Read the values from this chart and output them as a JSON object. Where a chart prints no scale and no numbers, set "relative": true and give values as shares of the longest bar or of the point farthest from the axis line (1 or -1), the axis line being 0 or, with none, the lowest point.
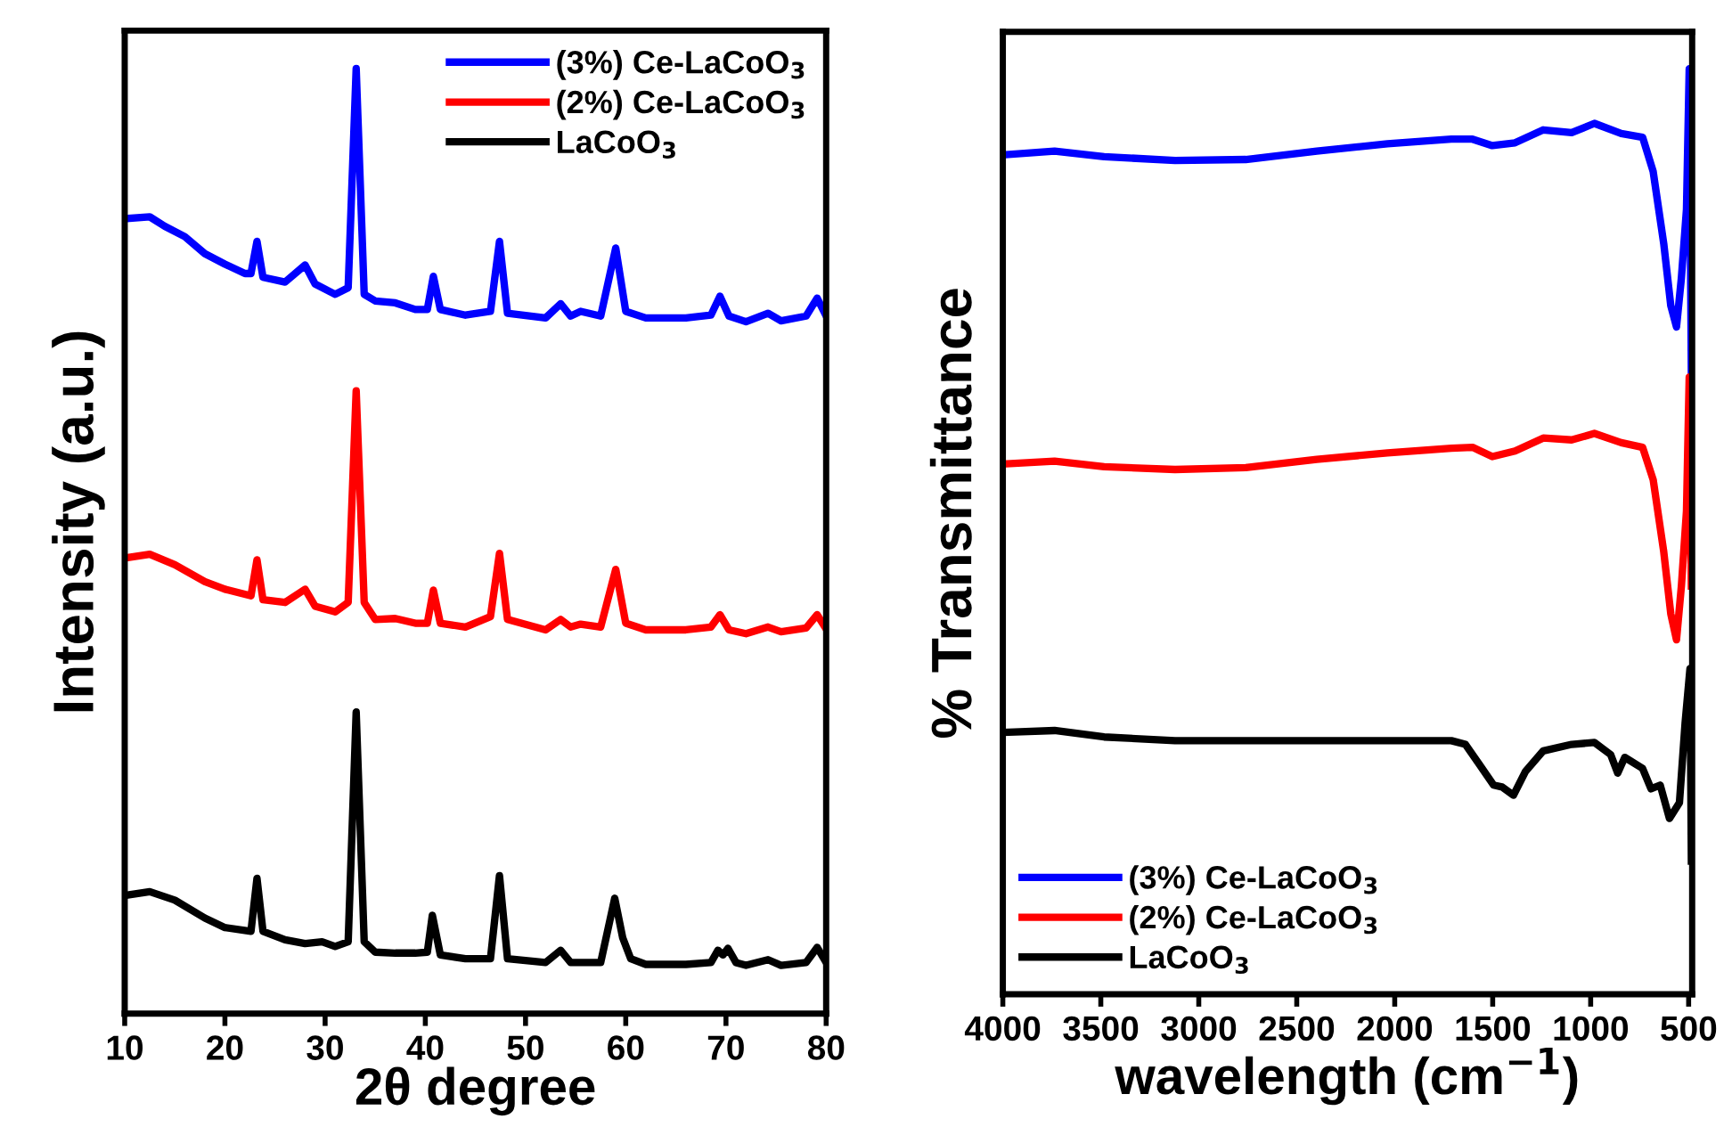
{
  "chart_data": [
    {
      "type": "line",
      "xlabel": "2θ degree",
      "ylabel": "Intensity (a.u.)",
      "relative": true,
      "xlim": [
        10,
        80
      ],
      "xticks": [
        10,
        20,
        30,
        40,
        50,
        60,
        70,
        80
      ],
      "tick_labels": "x",
      "legend": "top right",
      "grid": false,
      "marker": "none",
      "line_style": "solid",
      "series": [
        {
          "name": "(3%) Ce-LaCoO$_{3}$",
          "color": "#0000ff",
          "x": [
            10,
            12.5,
            14,
            16,
            18,
            20,
            22,
            22.6,
            23.2,
            23.8,
            26,
            28,
            29,
            31,
            32.3,
            33.1,
            33.9,
            35,
            37,
            39,
            40.2,
            40.8,
            41.5,
            44,
            46.5,
            47.4,
            48.2,
            52,
            53.5,
            54.5,
            55.5,
            57.5,
            59,
            60,
            62,
            66,
            68.5,
            69.4,
            70.3,
            72,
            74.2,
            75.5,
            78,
            79.1,
            80
          ],
          "values": [
            0.841,
            0.843,
            0.833,
            0.822,
            0.804,
            0.793,
            0.783,
            0.783,
            0.817,
            0.779,
            0.774,
            0.792,
            0.772,
            0.761,
            0.768,
            1.0,
            0.761,
            0.754,
            0.752,
            0.745,
            0.745,
            0.78,
            0.745,
            0.739,
            0.743,
            0.817,
            0.741,
            0.736,
            0.751,
            0.738,
            0.743,
            0.738,
            0.81,
            0.743,
            0.736,
            0.736,
            0.739,
            0.759,
            0.738,
            0.732,
            0.741,
            0.733,
            0.738,
            0.757,
            0.738
          ]
        },
        {
          "name": "(2%) Ce-LaCoO$_{3}$",
          "color": "#ff0000",
          "x": [
            10,
            12.5,
            15,
            18,
            20,
            22.6,
            23.2,
            23.8,
            26,
            28,
            29,
            31,
            32.3,
            33.1,
            33.9,
            35,
            37,
            39,
            40.2,
            40.8,
            41.5,
            44,
            46.5,
            47.4,
            48.2,
            52,
            53.5,
            54.5,
            55.5,
            57.5,
            59,
            60,
            62,
            66,
            68.5,
            69.4,
            70.3,
            72,
            74.2,
            75.5,
            78,
            79.1,
            80
          ],
          "values": [
            0.482,
            0.486,
            0.475,
            0.457,
            0.449,
            0.442,
            0.48,
            0.438,
            0.435,
            0.449,
            0.431,
            0.425,
            0.435,
            0.659,
            0.435,
            0.417,
            0.418,
            0.413,
            0.413,
            0.448,
            0.413,
            0.409,
            0.42,
            0.487,
            0.417,
            0.406,
            0.417,
            0.409,
            0.412,
            0.409,
            0.47,
            0.413,
            0.406,
            0.406,
            0.409,
            0.422,
            0.406,
            0.402,
            0.409,
            0.404,
            0.408,
            0.422,
            0.407
          ]
        },
        {
          "name": "LaCoO$_{3}$",
          "color": "#000000",
          "x": [
            10,
            12.5,
            15,
            18,
            20,
            22.6,
            23.2,
            23.8,
            26,
            28,
            29.7,
            31,
            32.3,
            33.1,
            33.9,
            35,
            37,
            39,
            40.2,
            40.7,
            41.5,
            44,
            46.5,
            47.4,
            48.2,
            52,
            53.5,
            54.5,
            57.5,
            58.9,
            59.7,
            60.5,
            62,
            66,
            68.5,
            69.2,
            69.7,
            70.2,
            71,
            72,
            74.2,
            75.5,
            78,
            79.1,
            80
          ],
          "values": [
            0.125,
            0.129,
            0.12,
            0.101,
            0.091,
            0.087,
            0.143,
            0.087,
            0.078,
            0.074,
            0.076,
            0.071,
            0.076,
            0.319,
            0.076,
            0.065,
            0.064,
            0.064,
            0.065,
            0.104,
            0.062,
            0.058,
            0.058,
            0.146,
            0.058,
            0.054,
            0.067,
            0.054,
            0.054,
            0.122,
            0.08,
            0.058,
            0.052,
            0.052,
            0.054,
            0.067,
            0.062,
            0.069,
            0.054,
            0.051,
            0.057,
            0.051,
            0.054,
            0.07,
            0.054
          ]
        }
      ]
    },
    {
      "type": "line",
      "xlabel": "wavelength (cm$^{−1}$)",
      "ylabel": "% Transmittance",
      "relative": true,
      "xlim": [
        4000,
        482
      ],
      "xticks": [
        4000,
        3500,
        3000,
        2500,
        2000,
        1500,
        1000,
        500
      ],
      "tick_labels": "x",
      "legend": "bottom left",
      "grid": false,
      "marker": "none",
      "line_style": "solid",
      "series": [
        {
          "name": "(3%) Ce-LaCoO$_{3}$",
          "color": "#0000ff",
          "x": [
            4000,
            3736,
            3483,
            3121,
            2760,
            2398,
            2037,
            1711,
            1603,
            1502,
            1386,
            1242,
            1097,
            981,
            844,
            735,
            681,
            627,
            591,
            562,
            537,
            511,
            497,
            486
          ],
          "values": [
            0.907,
            0.911,
            0.905,
            0.901,
            0.902,
            0.911,
            0.919,
            0.924,
            0.924,
            0.917,
            0.92,
            0.934,
            0.931,
            0.941,
            0.93,
            0.926,
            0.889,
            0.811,
            0.744,
            0.721,
            0.774,
            0.848,
            1.0,
            0.667
          ]
        },
        {
          "name": "(2%) Ce-LaCoO$_{3}$",
          "color": "#ff0000",
          "x": [
            4000,
            3736,
            3483,
            3121,
            2760,
            2398,
            2037,
            1711,
            1603,
            1502,
            1386,
            1242,
            1097,
            981,
            844,
            735,
            681,
            627,
            591,
            562,
            537,
            511,
            497,
            486
          ],
          "values": [
            0.573,
            0.576,
            0.57,
            0.567,
            0.569,
            0.578,
            0.585,
            0.59,
            0.591,
            0.581,
            0.587,
            0.601,
            0.599,
            0.606,
            0.596,
            0.591,
            0.556,
            0.478,
            0.411,
            0.383,
            0.441,
            0.522,
            0.667,
            0.441
          ]
        },
        {
          "name": "LaCoO$_{3}$",
          "color": "#000000",
          "x": [
            4000,
            3736,
            3483,
            3121,
            2760,
            2398,
            2037,
            1711,
            1639,
            1567,
            1495,
            1452,
            1394,
            1332,
            1242,
            1097,
            981,
            898,
            862,
            826,
            735,
            692,
            645,
            598,
            547,
            518,
            493,
            486
          ],
          "values": [
            0.283,
            0.285,
            0.278,
            0.274,
            0.274,
            0.274,
            0.274,
            0.274,
            0.27,
            0.248,
            0.226,
            0.224,
            0.215,
            0.241,
            0.263,
            0.27,
            0.272,
            0.259,
            0.239,
            0.256,
            0.244,
            0.222,
            0.226,
            0.19,
            0.207,
            0.293,
            0.352,
            0.144
          ]
        }
      ]
    }
  ]
}
